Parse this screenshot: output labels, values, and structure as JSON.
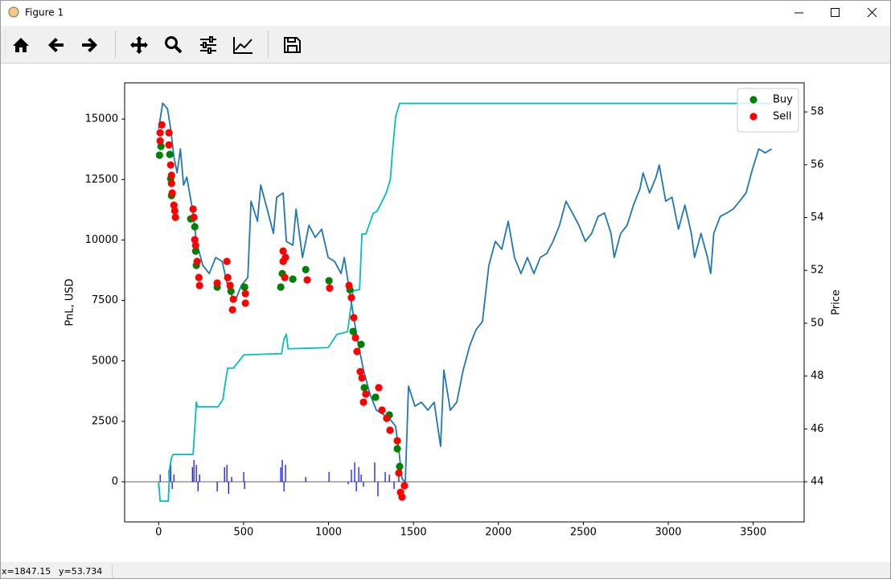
{
  "window": {
    "title": "Figure 1",
    "status_x": "x=1847.15",
    "status_y": "y=53.734"
  },
  "chart_data": {
    "type": "line",
    "ylabel": "PnL, USD",
    "y2label": "Price",
    "xlim": [
      -200,
      3800
    ],
    "xticks": [
      0,
      500,
      1000,
      1500,
      2000,
      2500,
      3000,
      3500
    ],
    "ylim": [
      -1660,
      16500
    ],
    "yticks": [
      0,
      2500,
      5000,
      7500,
      10000,
      12500,
      15000
    ],
    "y2lim": [
      42.48,
      59.1
    ],
    "y2ticks": [
      44,
      46,
      48,
      50,
      52,
      54,
      56,
      58
    ],
    "hline": 0,
    "hline_color": "#808080",
    "legend": "upper right",
    "series": [
      {
        "type": "bar",
        "axis": "y",
        "color": "#0000ff",
        "x": [
          0,
          9,
          61,
          71,
          80,
          90,
          199,
          208,
          222,
          232,
          241,
          345,
          388,
          402,
          412,
          430,
          501,
          506,
          719,
          728,
          738,
          747,
          866,
          1003,
          1116,
          1135,
          1154,
          1164,
          1178,
          1192,
          1206,
          1272,
          1291,
          1334,
          1358,
          1386,
          1414
        ],
        "values": [
          -250,
          300,
          500,
          900,
          -300,
          300,
          600,
          900,
          700,
          -400,
          300,
          -400,
          600,
          700,
          -500,
          200,
          400,
          -300,
          600,
          900,
          -400,
          700,
          200,
          400,
          -100,
          500,
          800,
          -400,
          600,
          300,
          -200,
          800,
          -600,
          400,
          300,
          -300,
          300
        ]
      },
      {
        "type": "line",
        "axis": "y",
        "color": "#00bfbf",
        "x": [
          0,
          9,
          57,
          66,
          76,
          85,
          203,
          218,
          222,
          228,
          350,
          378,
          393,
          397,
          407,
          440,
          502,
          724,
          738,
          752,
          762,
          998,
          1050,
          1112,
          1145,
          1183,
          1197,
          1220,
          1263,
          1287,
          1340,
          1364,
          1376,
          1395,
          1419,
          3609
        ],
        "values": [
          0,
          -800,
          -800,
          600,
          1000,
          1130,
          1130,
          2800,
          3300,
          3100,
          3100,
          3400,
          4100,
          4300,
          4700,
          4700,
          5250,
          5300,
          5900,
          6100,
          5500,
          5550,
          6100,
          6200,
          7900,
          7950,
          10250,
          10250,
          11100,
          11200,
          11950,
          12500,
          13600,
          15100,
          15650,
          15650
        ]
      },
      {
        "type": "line",
        "axis": "y2",
        "color": "#1f77b4",
        "x": [
          0,
          24,
          52,
          71,
          90,
          109,
          128,
          147,
          166,
          203,
          222,
          260,
          298,
          336,
          374,
          412,
          449,
          487,
          525,
          544,
          582,
          601,
          639,
          676,
          695,
          733,
          752,
          790,
          809,
          847,
          885,
          922,
          960,
          998,
          1036,
          1074,
          1093,
          1130,
          1168,
          1206,
          1244,
          1282,
          1320,
          1358,
          1395,
          1414,
          1433,
          1452,
          1471,
          1509,
          1547,
          1585,
          1622,
          1660,
          1679,
          1717,
          1755,
          1793,
          1831,
          1868,
          1906,
          1944,
          1982,
          2020,
          2058,
          2095,
          2133,
          2171,
          2209,
          2247,
          2285,
          2322,
          2360,
          2398,
          2436,
          2474,
          2512,
          2549,
          2587,
          2625,
          2663,
          2682,
          2720,
          2758,
          2795,
          2833,
          2852,
          2890,
          2928,
          2947,
          2985,
          3022,
          3060,
          3098,
          3136,
          3155,
          3193,
          3231,
          3250,
          3268,
          3306,
          3344,
          3382,
          3420,
          3458,
          3496,
          3533,
          3571,
          3609
        ],
        "values": [
          57.36,
          58.33,
          58.12,
          57.36,
          56.3,
          55.69,
          56.6,
          55.23,
          55.53,
          54.17,
          53.1,
          52.19,
          51.88,
          52.49,
          52.34,
          51.27,
          50.82,
          51.43,
          51.73,
          54.62,
          53.86,
          55.23,
          54.32,
          53.4,
          54.77,
          54.93,
          53.1,
          52.95,
          54.32,
          52.49,
          53.71,
          53.25,
          53.56,
          52.49,
          52.34,
          51.88,
          52.49,
          50.97,
          49.45,
          48.23,
          47.32,
          46.71,
          46.56,
          46.4,
          46.1,
          45.19,
          44.12,
          43.97,
          47.62,
          46.86,
          47.01,
          46.71,
          47.01,
          45.34,
          48.23,
          46.71,
          47.01,
          48.23,
          49.14,
          49.75,
          50.06,
          52.19,
          53.1,
          52.8,
          53.86,
          52.49,
          51.88,
          52.49,
          51.88,
          52.49,
          52.64,
          53.1,
          53.71,
          54.62,
          54.17,
          53.71,
          53.1,
          53.4,
          54.04,
          54.17,
          53.4,
          52.49,
          53.4,
          53.71,
          54.47,
          55.08,
          55.69,
          54.93,
          55.53,
          55.99,
          54.62,
          54.77,
          53.56,
          54.47,
          53.4,
          52.49,
          53.4,
          52.49,
          51.88,
          53.4,
          54.04,
          54.17,
          54.32,
          54.62,
          54.93,
          55.84,
          56.6,
          56.45,
          56.6
        ]
      },
      {
        "type": "scatter",
        "name": "Buy",
        "axis": "y2",
        "color": "#008000",
        "x": [
          5,
          14,
          66,
          71,
          76,
          189,
          213,
          218,
          222,
          345,
          426,
          506,
          719,
          728,
          790,
          866,
          1003,
          1126,
          1145,
          1192,
          1211,
          1277,
          1358,
          1405,
          1419
        ],
        "values": [
          56.36,
          56.69,
          56.39,
          55.47,
          54.83,
          53.95,
          53.65,
          52.73,
          52.19,
          51.37,
          51.21,
          51.37,
          51.37,
          51.88,
          51.67,
          52.03,
          51.61,
          51.27,
          49.69,
          49.2,
          47.56,
          47.2,
          46.53,
          45.25,
          44.58
        ]
      },
      {
        "type": "scatter",
        "name": "Sell",
        "axis": "y2",
        "color": "#ff0000",
        "x": [
          9,
          9,
          19,
          61,
          61,
          71,
          76,
          76,
          80,
          90,
          95,
          99,
          203,
          208,
          213,
          218,
          227,
          237,
          241,
          345,
          402,
          407,
          421,
          435,
          440,
          511,
          511,
          733,
          733,
          747,
          743,
          875,
          1007,
          1121,
          1135,
          1149,
          1159,
          1168,
          1187,
          1197,
          1206,
          1220,
          1296,
          1315,
          1343,
          1362,
          1405,
          1414,
          1424,
          1433,
          1447
        ],
        "values": [
          56.9,
          57.21,
          57.51,
          57.21,
          56.75,
          55.99,
          55.6,
          55.29,
          54.93,
          54.47,
          54.26,
          54.01,
          54.32,
          54.01,
          53.16,
          52.95,
          52.34,
          51.73,
          51.43,
          51.52,
          52.34,
          51.73,
          51.43,
          50.51,
          50.91,
          50.76,
          51.12,
          52.73,
          52.34,
          52.49,
          51.73,
          51.64,
          51.33,
          51.43,
          50.97,
          50.21,
          49.45,
          48.93,
          48.17,
          47.93,
          47.01,
          47.32,
          47.56,
          46.71,
          46.4,
          45.95,
          45.55,
          44.33,
          43.6,
          43.42,
          43.85
        ]
      }
    ]
  }
}
